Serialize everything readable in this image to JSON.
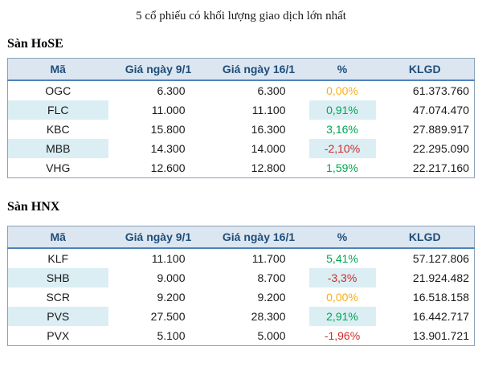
{
  "title": "5 cổ phiếu có khối lượng giao dịch lớn nhất",
  "columns": [
    "Mã",
    "Giá ngày 9/1",
    "Giá ngày 16/1",
    "%",
    "KLGD"
  ],
  "colors": {
    "header-bg": "#dce6f1",
    "header-text": "#1f4e79",
    "stripe": "#daeef3",
    "up": "#00a551",
    "down": "#d02a2a",
    "flat": "#fbae17",
    "header-rule": "#4f81bd",
    "table-border": "#8aa0b8"
  },
  "sections": [
    {
      "heading": "Sàn HoSE",
      "rows": [
        {
          "code": "OGC",
          "price_jan9": "6.300",
          "price_jan16": "6.300",
          "pct": "0,00%",
          "trend": "flat",
          "klgd": "61.373.760"
        },
        {
          "code": "FLC",
          "price_jan9": "11.000",
          "price_jan16": "11.100",
          "pct": "0,91%",
          "trend": "up",
          "klgd": "47.074.470"
        },
        {
          "code": "KBC",
          "price_jan9": "15.800",
          "price_jan16": "16.300",
          "pct": "3,16%",
          "trend": "up",
          "klgd": "27.889.917"
        },
        {
          "code": "MBB",
          "price_jan9": "14.300",
          "price_jan16": "14.000",
          "pct": "-2,10%",
          "trend": "down",
          "klgd": "22.295.090"
        },
        {
          "code": "VHG",
          "price_jan9": "12.600",
          "price_jan16": "12.800",
          "pct": "1,59%",
          "trend": "up",
          "klgd": "22.217.160"
        }
      ]
    },
    {
      "heading": "Sàn HNX",
      "rows": [
        {
          "code": "KLF",
          "price_jan9": "11.100",
          "price_jan16": "11.700",
          "pct": "5,41%",
          "trend": "up",
          "klgd": "57.127.806"
        },
        {
          "code": "SHB",
          "price_jan9": "9.000",
          "price_jan16": "8.700",
          "pct": "-3,3%",
          "trend": "down",
          "klgd": "21.924.482"
        },
        {
          "code": "SCR",
          "price_jan9": "9.200",
          "price_jan16": "9.200",
          "pct": "0,00%",
          "trend": "flat",
          "klgd": "16.518.158"
        },
        {
          "code": "PVS",
          "price_jan9": "27.500",
          "price_jan16": "28.300",
          "pct": "2,91%",
          "trend": "up",
          "klgd": "16.442.717"
        },
        {
          "code": "PVX",
          "price_jan9": "5.100",
          "price_jan16": "5.000",
          "pct": "-1,96%",
          "trend": "down",
          "klgd": "13.901.721"
        }
      ]
    }
  ]
}
